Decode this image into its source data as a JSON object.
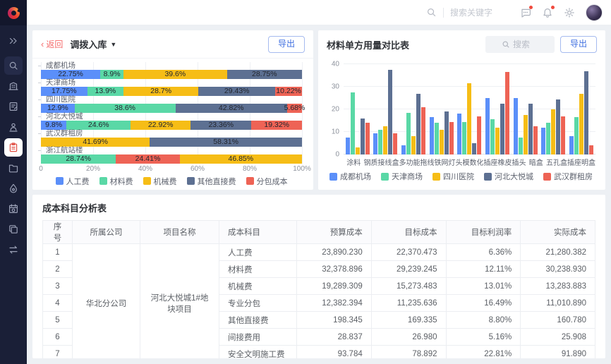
{
  "topbar": {
    "search_placeholder": "搜索关键字",
    "icons": [
      {
        "name": "message-icon",
        "badge": true
      },
      {
        "name": "bell-icon",
        "badge": true
      },
      {
        "name": "gear-icon",
        "badge": false
      }
    ]
  },
  "sidebar": {
    "items": [
      {
        "icon": "expand-icon",
        "name": "expand-sidebar"
      },
      {
        "icon": "search-icon",
        "name": "nav-search",
        "boxed": true
      },
      {
        "icon": "building-icon",
        "name": "nav-company"
      },
      {
        "icon": "document-edit-icon",
        "name": "nav-documents"
      },
      {
        "icon": "user-audit-icon",
        "name": "nav-approvals"
      },
      {
        "icon": "clipboard-icon",
        "name": "nav-cost",
        "active": true
      },
      {
        "icon": "folder-icon",
        "name": "nav-files"
      },
      {
        "icon": "drop-icon",
        "name": "nav-resources"
      },
      {
        "icon": "calendar-settings-icon",
        "name": "nav-schedule"
      },
      {
        "icon": "copy-icon",
        "name": "nav-copies"
      },
      {
        "icon": "transfer-icon",
        "name": "nav-transfer"
      }
    ]
  },
  "left_panel": {
    "back_label": "返回",
    "title": "调拨入库",
    "export_label": "导出"
  },
  "right_panel": {
    "title": "材料单方用量对比表",
    "search_placeholder": "搜索",
    "export_label": "导出"
  },
  "chart_data": [
    {
      "type": "bar",
      "orientation": "horizontal",
      "stacked": true,
      "title": "调拨入库",
      "legend": [
        "人工费",
        "材料费",
        "机械费",
        "其他直接费",
        "分包成本"
      ],
      "legend_colors": [
        "#5B8FF9",
        "#5AD8A6",
        "#F6BD16",
        "#5D7092",
        "#EE6355"
      ],
      "x_ticks": [
        "0",
        "20%",
        "40%",
        "60%",
        "80%",
        "100%"
      ],
      "xlim": [
        0,
        100
      ],
      "rows": [
        {
          "category": "成都机场",
          "segments": [
            {
              "name": "人工费",
              "v": 22.75,
              "label": "22.75%"
            },
            {
              "name": "材料费",
              "v": 8.9,
              "label": "8.9%"
            },
            {
              "name": "机械费",
              "v": 39.6,
              "label": "39.6%"
            },
            {
              "name": "其他直接费",
              "v": 28.75,
              "label": "28.75%"
            }
          ]
        },
        {
          "category": "天津商场",
          "segments": [
            {
              "name": "人工费",
              "v": 17.75,
              "label": "17.75%"
            },
            {
              "name": "材料费",
              "v": 13.9,
              "label": "13.9%"
            },
            {
              "name": "机械费",
              "v": 28.7,
              "label": "28.7%"
            },
            {
              "name": "其他直接费",
              "v": 29.43,
              "label": "29.43%"
            },
            {
              "name": "分包成本",
              "v": 10.22,
              "label": "10.22%"
            }
          ]
        },
        {
          "category": "四川医院",
          "segments": [
            {
              "name": "人工费",
              "v": 12.9,
              "label": "12.9%"
            },
            {
              "name": "材料费",
              "v": 38.6,
              "label": "38.6%"
            },
            {
              "name": "其他直接费",
              "v": 42.82,
              "label": "42.82%"
            },
            {
              "name": "分包成本",
              "v": 5.68,
              "label": "5.68%"
            }
          ]
        },
        {
          "category": "河北大悦城",
          "segments": [
            {
              "name": "人工费",
              "v": 9.8,
              "label": "9.8%"
            },
            {
              "name": "材料费",
              "v": 24.6,
              "label": "24.6%"
            },
            {
              "name": "机械费",
              "v": 22.92,
              "label": "22.92%"
            },
            {
              "name": "其他直接费",
              "v": 23.36,
              "label": "23.36%"
            },
            {
              "name": "分包成本",
              "v": 19.32,
              "label": "19.32%"
            }
          ]
        },
        {
          "category": "武汉群租房",
          "segments": [
            {
              "name": "机械费",
              "v": 41.69,
              "label": "41.69%"
            },
            {
              "name": "其他直接费",
              "v": 58.31,
              "label": "58.31%"
            }
          ]
        },
        {
          "category": "浙江航站楼",
          "segments": [
            {
              "name": "材料费",
              "v": 28.74,
              "label": "28.74%"
            },
            {
              "name": "分包成本",
              "v": 24.41,
              "label": "24.41%"
            },
            {
              "name": "机械费",
              "v": 46.85,
              "label": "46.85%"
            }
          ]
        }
      ]
    },
    {
      "type": "bar",
      "grouped": true,
      "title": "材料单方用量对比表",
      "categories": [
        "涂料",
        "钢质接线盒",
        "多功能拖线",
        "铁网灯头",
        "模数化插座",
        "橡皮插头",
        "暗盒",
        "五孔盒",
        "插座明盒"
      ],
      "series": [
        {
          "name": "成都机场",
          "color": "#5B8FF9",
          "values": [
            7.5,
            9.5,
            4,
            16.5,
            18,
            25,
            25,
            12,
            8
          ]
        },
        {
          "name": "天津商场",
          "color": "#5AD8A6",
          "values": [
            27.5,
            11,
            18.5,
            14,
            14.5,
            15.5,
            7.5,
            14,
            16.5
          ]
        },
        {
          "name": "四川医院",
          "color": "#F6BD16",
          "values": [
            3,
            12.5,
            8,
            11,
            31.5,
            12,
            17.5,
            20,
            27
          ]
        },
        {
          "name": "河北大悦城",
          "color": "#5D7092",
          "values": [
            16,
            37.5,
            27,
            19,
            5,
            22.5,
            22.5,
            24.5,
            37
          ]
        },
        {
          "name": "武汉群租房",
          "color": "#EE6355",
          "values": [
            14,
            9.5,
            21,
            14.5,
            17,
            36.5,
            12.5,
            17,
            4
          ]
        }
      ],
      "y_ticks": [
        0,
        10,
        20,
        30,
        40
      ],
      "ylim": [
        0,
        40
      ],
      "legend_position": "bottom"
    }
  ],
  "table": {
    "title": "成本科目分析表",
    "headers": [
      "序号",
      "所属公司",
      "项目名称",
      "成本科目",
      "预算成本",
      "目标成本",
      "目标利润率",
      "实际成本"
    ],
    "company": "华北分公司",
    "project": "河北大悦城1#地块项目",
    "rows": [
      {
        "no": "1",
        "subject": "人工费",
        "budget": "23,890.230",
        "target": "22,370.473",
        "margin": "6.36%",
        "actual": "21,280.382"
      },
      {
        "no": "2",
        "subject": "材料费",
        "budget": "32,378.896",
        "target": "29,239.245",
        "margin": "12.11%",
        "actual": "30,238.930"
      },
      {
        "no": "3",
        "subject": "机械费",
        "budget": "19,289.309",
        "target": "15,273.483",
        "margin": "13.01%",
        "actual": "13,283.883"
      },
      {
        "no": "4",
        "subject": "专业分包",
        "budget": "12,382.394",
        "target": "11,235.636",
        "margin": "16.49%",
        "actual": "11,010.890"
      },
      {
        "no": "5",
        "subject": "其他直接费",
        "budget": "198.345",
        "target": "169.335",
        "margin": "8.80%",
        "actual": "160.780"
      },
      {
        "no": "6",
        "subject": "间接费用",
        "budget": "28.837",
        "target": "26.980",
        "margin": "5.16%",
        "actual": "25.908"
      },
      {
        "no": "7",
        "subject": "安全文明施工费",
        "budget": "93.784",
        "target": "78.892",
        "margin": "22.81%",
        "actual": "91.890"
      }
    ]
  }
}
